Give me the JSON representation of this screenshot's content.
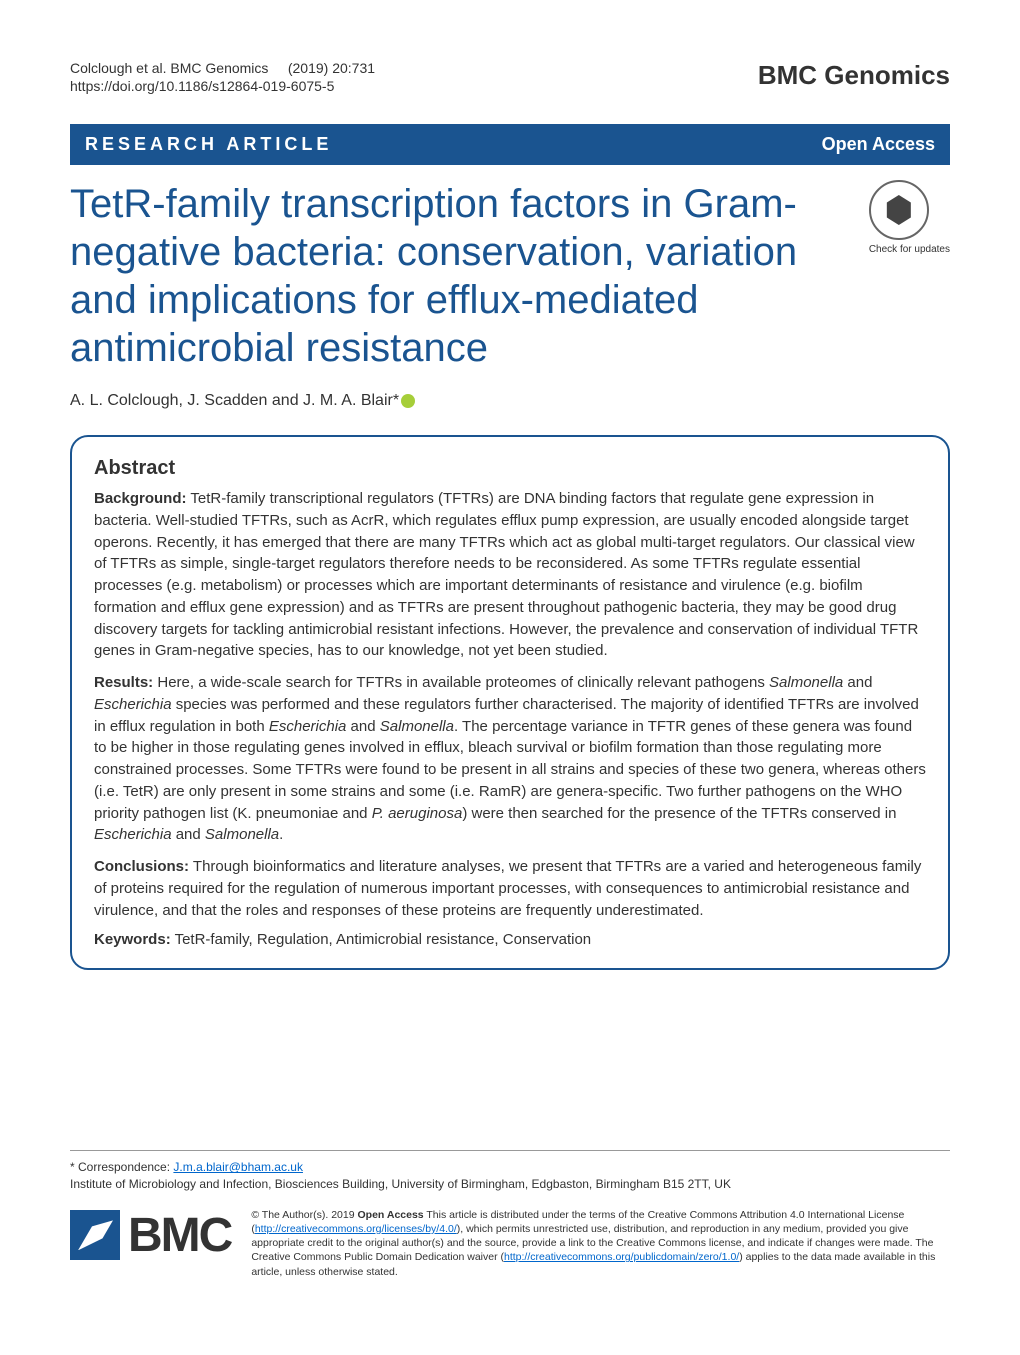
{
  "header": {
    "citation": "Colclough et al. BMC Genomics     (2019) 20:731",
    "doi": "https://doi.org/10.1186/s12864-019-6075-5",
    "journal": "BMC Genomics"
  },
  "article_bar": {
    "type": "RESEARCH ARTICLE",
    "access": "Open Access"
  },
  "title": "TetR-family transcription factors in Gram-negative bacteria: conservation, variation and implications for efflux-mediated antimicrobial resistance",
  "check_updates": "Check for updates",
  "authors": "A. L. Colclough, J. Scadden and J. M. A. Blair*",
  "abstract": {
    "heading": "Abstract",
    "background": {
      "label": "Background:",
      "text": " TetR-family transcriptional regulators (TFTRs) are DNA binding factors that regulate gene expression in bacteria. Well-studied TFTRs, such as AcrR, which regulates efflux pump expression, are usually encoded alongside target operons. Recently, it has emerged that there are many TFTRs which act as global multi-target regulators. Our classical view of TFTRs as simple, single-target regulators therefore needs to be reconsidered. As some TFTRs regulate essential processes (e.g. metabolism) or processes which are important determinants of resistance and virulence (e.g. biofilm formation and efflux gene expression) and as TFTRs are present throughout pathogenic bacteria, they may be good drug discovery targets for tackling antimicrobial resistant infections. However, the prevalence and conservation of individual TFTR genes in Gram-negative species, has to our knowledge, not yet been studied."
    },
    "results": {
      "label": "Results:",
      "text_parts": [
        " Here, a wide-scale search for TFTRs in available proteomes of clinically relevant pathogens ",
        "Salmonella",
        " and ",
        "Escherichia",
        " species was performed and these regulators further characterised. The majority of identified TFTRs are involved in efflux regulation in both ",
        "Escherichia",
        " and ",
        "Salmonella",
        ". The percentage variance in TFTR genes of these genera was found to be higher in those regulating genes involved in efflux, bleach survival or biofilm formation than those regulating more constrained processes. Some TFTRs were found to be present in all strains and species of these two genera, whereas others (i.e. TetR) are only present in some strains and some (i.e. RamR) are genera-specific. Two further pathogens on the WHO priority pathogen list (",
        "K. pneumoniae",
        " and ",
        "P. aeruginosa",
        ") were then searched for the presence of the TFTRs conserved in ",
        "Escherichia",
        " and ",
        "Salmonella",
        "."
      ]
    },
    "conclusions": {
      "label": "Conclusions:",
      "text": " Through bioinformatics and literature analyses, we present that TFTRs are a varied and heterogeneous family of proteins required for the regulation of numerous important processes, with consequences to antimicrobial resistance and virulence, and that the roles and responses of these proteins are frequently underestimated."
    },
    "keywords": {
      "label": "Keywords:",
      "text": " TetR-family, Regulation, Antimicrobial resistance, Conservation"
    }
  },
  "footer": {
    "correspondence_label": "* Correspondence: ",
    "correspondence_email": "J.m.a.blair@bham.ac.uk",
    "affiliation": "Institute of Microbiology and Infection, Biosciences Building, University of Birmingham, Edgbaston, Birmingham B15 2TT, UK",
    "bmc_logo": "BMC",
    "license_prefix": "© The Author(s). 2019 ",
    "license_bold": "Open Access",
    "license_text1": " This article is distributed under the terms of the Creative Commons Attribution 4.0 International License (",
    "license_link1": "http://creativecommons.org/licenses/by/4.0/",
    "license_text2": "), which permits unrestricted use, distribution, and reproduction in any medium, provided you give appropriate credit to the original author(s) and the source, provide a link to the Creative Commons license, and indicate if changes were made. The Creative Commons Public Domain Dedication waiver (",
    "license_link2": "http://creativecommons.org/publicdomain/zero/1.0/",
    "license_text3": ") applies to the data made available in this article, unless otherwise stated."
  },
  "colors": {
    "primary": "#1a5490",
    "text": "#333333",
    "link": "#0066cc"
  }
}
